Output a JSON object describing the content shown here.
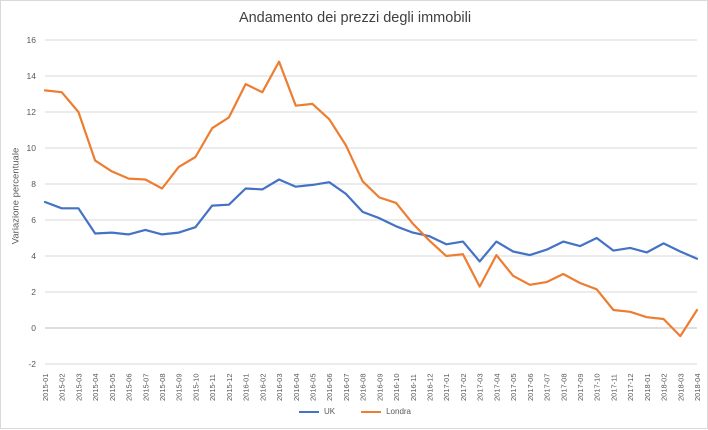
{
  "chart_data": {
    "type": "line",
    "title": "Andamento dei prezzi degli immobili",
    "xlabel": "",
    "ylabel": "Variazione percentuale",
    "ylim": [
      -2,
      16
    ],
    "yticks": [
      -2,
      0,
      2,
      4,
      6,
      8,
      10,
      12,
      14,
      16
    ],
    "grid": true,
    "legend_position": "bottom",
    "categories": [
      "2015-01",
      "2015-02",
      "2015-03",
      "2015-04",
      "2015-05",
      "2015-06",
      "2015-07",
      "2015-08",
      "2015-09",
      "2015-10",
      "2015-11",
      "2015-12",
      "2016-01",
      "2016-02",
      "2016-03",
      "2016-04",
      "2016-05",
      "2016-06",
      "2016-07",
      "2016-08",
      "2016-09",
      "2016-10",
      "2016-11",
      "2016-12",
      "2017-01",
      "2017-02",
      "2017-03",
      "2017-04",
      "2017-05",
      "2017-06",
      "2017-07",
      "2017-08",
      "2017-09",
      "2017-10",
      "2017-11",
      "2017-12",
      "2018-01",
      "2018-02",
      "2018-03",
      "2018-04"
    ],
    "series": [
      {
        "name": "UK",
        "color": "#4472c4",
        "values": [
          7.0,
          6.65,
          6.65,
          5.25,
          5.3,
          5.2,
          5.45,
          5.2,
          5.3,
          5.6,
          6.8,
          6.85,
          7.75,
          7.7,
          8.25,
          7.85,
          7.95,
          8.1,
          7.45,
          6.45,
          6.1,
          5.65,
          5.3,
          5.1,
          4.65,
          4.8,
          3.7,
          4.8,
          4.25,
          4.05,
          4.35,
          4.8,
          4.55,
          5.0,
          4.3,
          4.45,
          4.2,
          4.7,
          4.25,
          3.85
        ]
      },
      {
        "name": "Londra",
        "color": "#ed7d31",
        "values": [
          13.2,
          13.1,
          12.0,
          9.3,
          8.7,
          8.3,
          8.25,
          7.75,
          8.95,
          9.5,
          11.1,
          11.7,
          13.55,
          13.1,
          14.8,
          12.35,
          12.45,
          11.6,
          10.15,
          8.15,
          7.25,
          6.95,
          5.8,
          4.85,
          4.0,
          4.1,
          2.3,
          4.05,
          2.9,
          2.4,
          2.55,
          3.0,
          2.5,
          2.15,
          1.0,
          0.9,
          0.6,
          0.5,
          -0.45,
          1.0
        ]
      }
    ]
  }
}
